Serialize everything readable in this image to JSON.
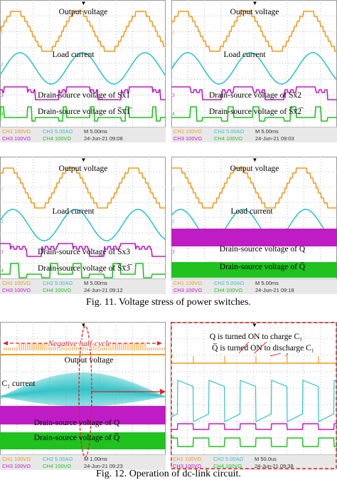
{
  "figures": [
    {
      "caption": "Fig. 11. Voltage stress of power switches.",
      "panels": [
        {
          "labels": [
            "Output voltage",
            "Load current",
            "Drain-source voltage of Sx1",
            "Drain-source voltage of S̅x̅1̅"
          ],
          "status": {
            "ch1": "CH1",
            "v1": "100VΩ",
            "ch2": "CH2",
            "v2": "5.00AΩ",
            "time": "M 5.00ms",
            "ch3": "CH3",
            "v3": "100VΩ",
            "ch4": "CH4",
            "v4": "100VΩ",
            "date": "24-Jun-21 09:08"
          }
        },
        {
          "labels": [
            "Output voltage",
            "Load current",
            "Drain-source voltage of Sx2",
            "Drain-source voltage of S̅x̅2̅"
          ],
          "status": {
            "ch1": "CH1",
            "v1": "100VΩ",
            "ch2": "CH2",
            "v2": "5.00AΩ",
            "time": "M 5.00ms",
            "ch3": "CH3",
            "v3": "100VΩ",
            "ch4": "CH4",
            "v4": "100VΩ",
            "date": "24-Jun-21 09:03"
          }
        },
        {
          "labels": [
            "Output voltage",
            "Load current",
            "Drain-source voltage of Sx3",
            "Drain-source voltage of S̅x̅3̅"
          ],
          "status": {
            "ch1": "CH1",
            "v1": "100VΩ",
            "ch2": "CH2",
            "v2": "5.00AΩ",
            "time": "M 5.00ms",
            "ch3": "CH3",
            "v3": "100VΩ",
            "ch4": "CH4",
            "v4": "100VΩ",
            "date": "24-Jun-21 09:12"
          }
        },
        {
          "labels": [
            "Output voltage",
            "Load current",
            "Drain-source voltage of Q",
            "Drain-source voltage of Q̅"
          ],
          "status": {
            "ch1": "CH1",
            "v1": "100VΩ",
            "ch2": "CH2",
            "v2": "5.00AΩ",
            "time": "M 5.00ms",
            "ch3": "CH3",
            "v3": "100VΩ",
            "ch4": "CH4",
            "v4": "100VΩ",
            "date": "24-Jun-21 09:18"
          }
        }
      ]
    },
    {
      "caption": "Fig. 12. Operation of dc-link circuit.",
      "panels": [
        {
          "labels": [
            "Negative half-cycle",
            "Output voltage",
            "C₁ current",
            "Drain-source voltage of Q",
            "Drain-source voltage of Q̅"
          ],
          "status": {
            "ch1": "CH1",
            "v1": "100VΩ",
            "ch2": "CH2",
            "v2": "5.00AΩ",
            "time": "M 1.00ms",
            "ch3": "CH3",
            "v3": "100VΩ",
            "ch4": "CH4",
            "v4": "100VΩ",
            "date": "24-Jun-21 09:23"
          }
        },
        {
          "labels": [
            "Q is turned ON to charge C₁",
            "Q̅ is turned ON to discharge C₁"
          ],
          "status": {
            "ch1": "CH1",
            "v1": "100VΩ",
            "ch2": "CH2",
            "v2": "5.00AΩ",
            "time": "M 50.0us",
            "ch3": "CH3",
            "v3": "100VΩ",
            "ch4": "CH4",
            "v4": "100VΩ",
            "date": "24-Jun-21 09:38"
          }
        }
      ]
    }
  ],
  "channel_markers": [
    "1",
    "2",
    "3",
    "4"
  ]
}
